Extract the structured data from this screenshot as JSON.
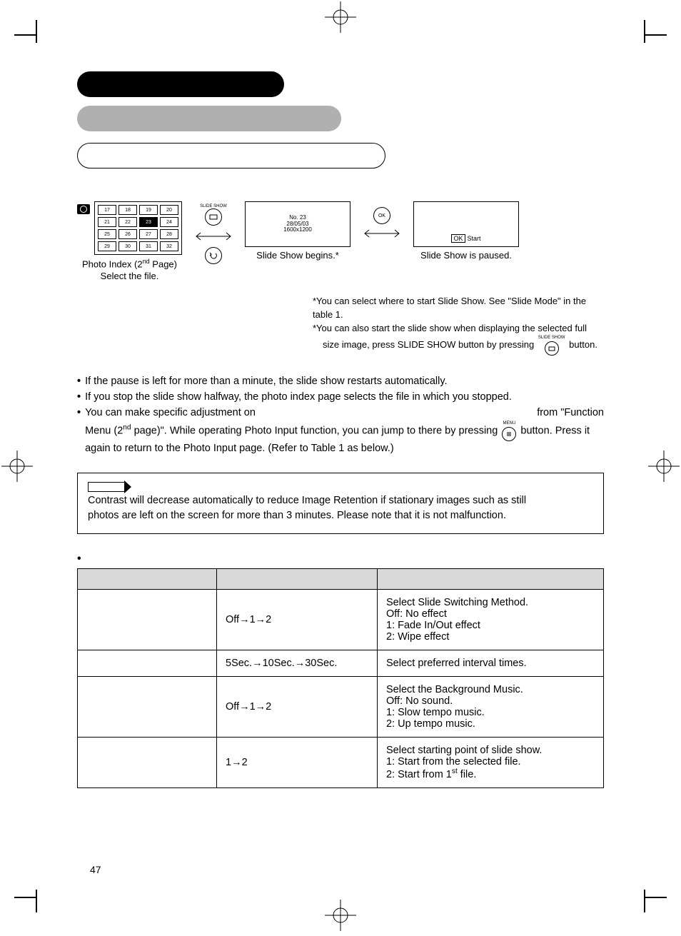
{
  "page_number": "47",
  "colors": {
    "black": "#000000",
    "gray_pill": "#b0b0b0",
    "table_header": "#d9d9d9",
    "white": "#ffffff"
  },
  "thumbnails": {
    "cells": [
      "17",
      "18",
      "19",
      "20",
      "21",
      "22",
      "23",
      "24",
      "25",
      "26",
      "27",
      "28",
      "29",
      "30",
      "31",
      "32"
    ],
    "selected": "23",
    "caption_line1_pre": "Photo Index (2",
    "caption_line1_sup": "nd",
    "caption_line1_post": " Page)",
    "caption_line2": "Select the file."
  },
  "btn_slide_show_label": "SLIDE SHOW",
  "btn_ok_label": "OK",
  "screen_slide": {
    "line1": "No. 23",
    "line2": "28/05/03",
    "line3": "1600x1200",
    "caption": "Slide Show begins.*"
  },
  "screen_pause": {
    "ok_box": "OK",
    "start": "Start",
    "caption": "Slide Show is paused."
  },
  "right_notes": {
    "l1": "*You can select where to start Slide Show. See \"Slide Mode\" in the table 1.",
    "l2": "*You can also start the slide show when displaying the selected full",
    "l3_pre": "size image, press SLIDE SHOW button by pressing ",
    "l3_post": " button."
  },
  "menu_label": "MENU",
  "bullets": {
    "b1": "If the pause is left for more than a minute, the slide show restarts automatically.",
    "b2": "If you stop the slide show halfway, the photo index page selects the file in which you stopped.",
    "b3_pre": "You can make specific adjustment on",
    "b3_right": "from \"Function",
    "b3_line2_pre": "Menu (2",
    "b3_line2_sup": "nd",
    "b3_line2_mid": " page)\". While operating Photo Input function, you can jump to there by pressing ",
    "b3_line2_post": " button.  Press it",
    "b3_line3": "again to return to the Photo Input page. (Refer to Table 1 as below.)"
  },
  "note_box": {
    "line1": "Contrast will decrease automatically to reduce Image Retention if stationary images such as still",
    "line2": "photos are left on the screen for more than 3 minutes. Please note that it is not malfunction."
  },
  "table": {
    "rows": [
      {
        "c1": "",
        "c2": "Off→1→2",
        "c3": "Select Slide Switching Method.\nOff: No effect\n1: Fade In/Out effect\n2: Wipe effect"
      },
      {
        "c1": "",
        "c2": "5Sec.→10Sec.→30Sec.",
        "c3": "Select preferred interval times."
      },
      {
        "c1": "",
        "c2": "Off→1→2",
        "c3": "Select the Background Music.\nOff: No sound.\n1: Slow tempo music.\n2: Up tempo music."
      },
      {
        "c1": "",
        "c2": "1→2",
        "c3": "Select starting point of slide show.\n1: Start from the selected file.\n2: Start from 1<sup>st</sup> file."
      }
    ]
  }
}
